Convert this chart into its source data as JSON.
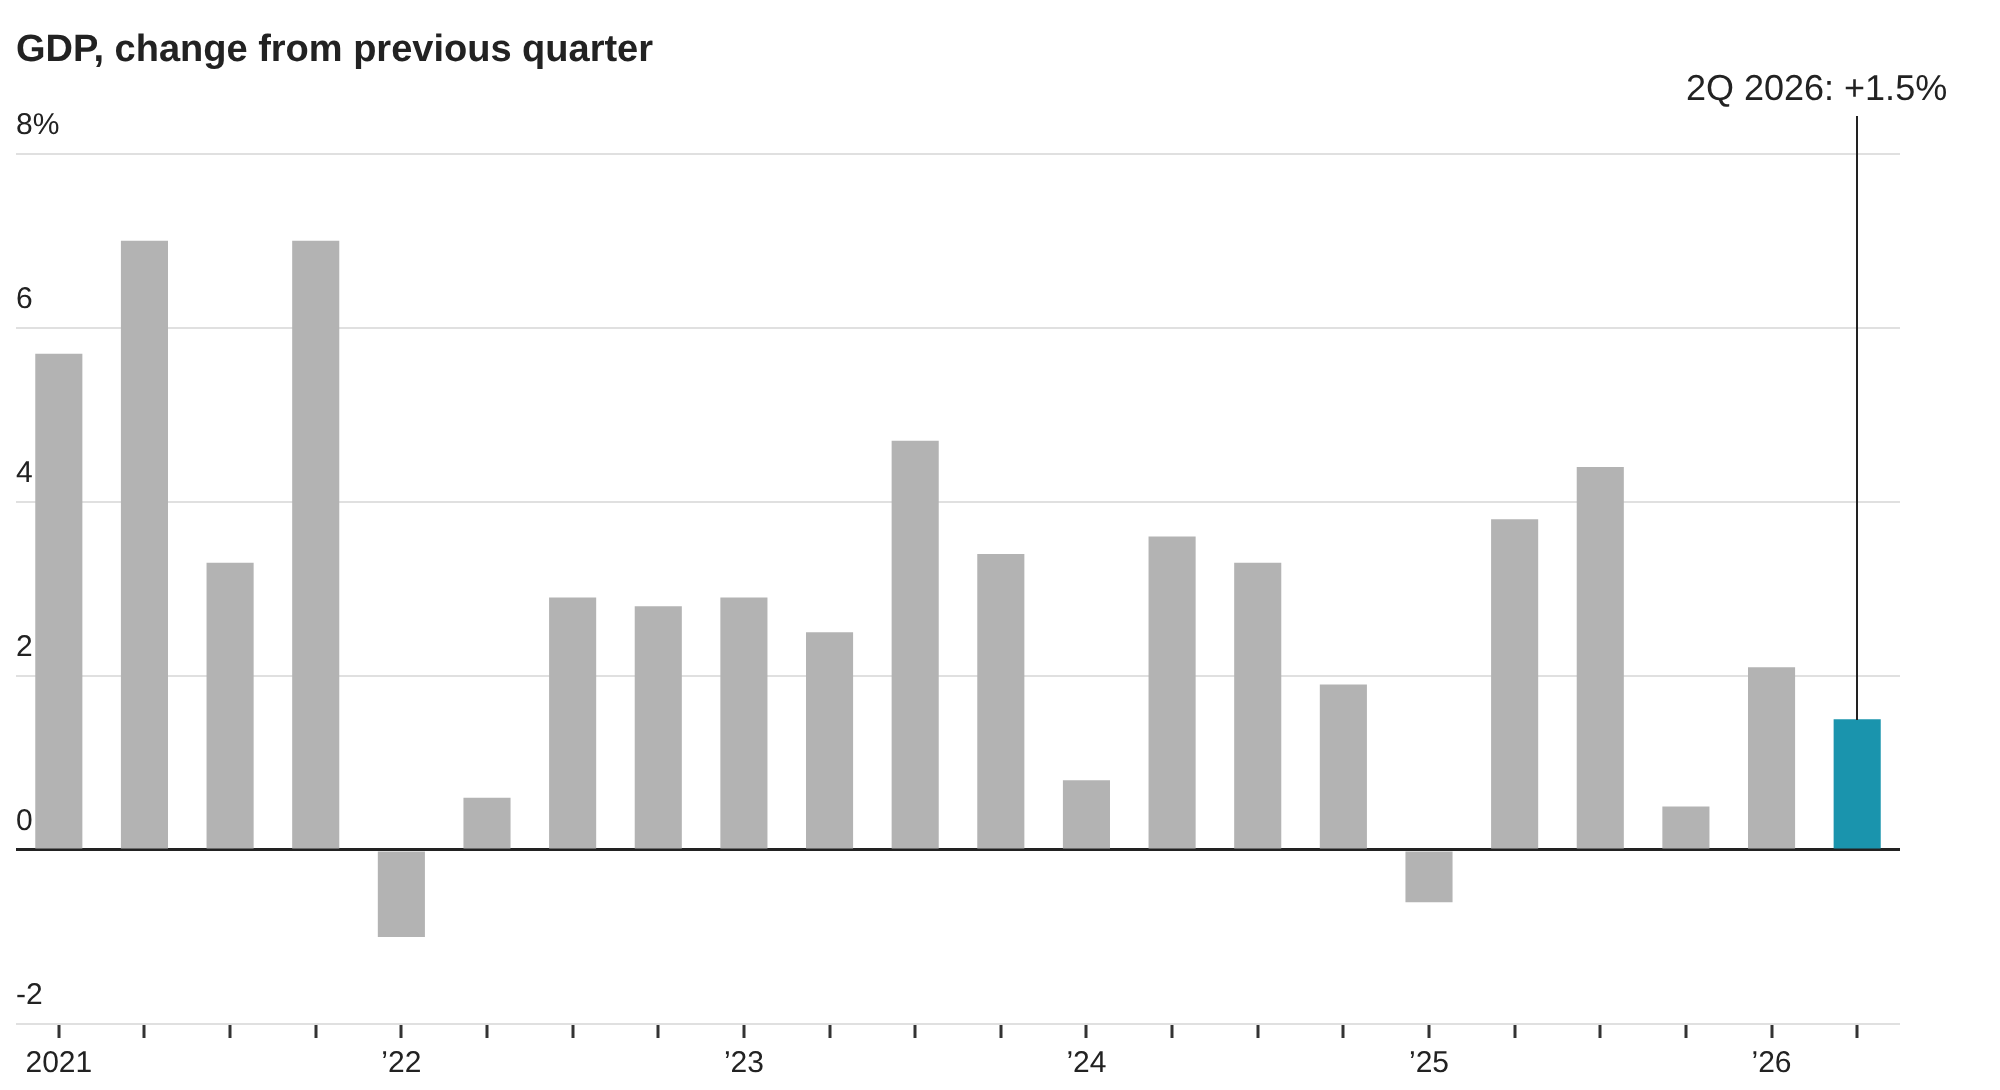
{
  "chart_data": {
    "type": "bar",
    "title": "GDP, change from previous quarter",
    "categories": [
      "2021",
      null,
      null,
      null,
      "’22",
      null,
      null,
      null,
      "’23",
      null,
      null,
      null,
      "’24",
      null,
      null,
      null,
      "’25",
      null,
      null,
      null,
      "’26",
      null
    ],
    "values": [
      5.7,
      7.0,
      3.3,
      7.0,
      -1.0,
      0.6,
      2.9,
      2.8,
      2.9,
      2.5,
      4.7,
      3.4,
      0.8,
      3.6,
      3.3,
      1.9,
      -0.6,
      3.8,
      4.4,
      0.5,
      2.1,
      1.5
    ],
    "colors": [
      "#b3b3b3",
      "#b3b3b3",
      "#b3b3b3",
      "#b3b3b3",
      "#b3b3b3",
      "#b3b3b3",
      "#b3b3b3",
      "#b3b3b3",
      "#b3b3b3",
      "#b3b3b3",
      "#b3b3b3",
      "#b3b3b3",
      "#b3b3b3",
      "#b3b3b3",
      "#b3b3b3",
      "#b3b3b3",
      "#b3b3b3",
      "#b3b3b3",
      "#b3b3b3",
      "#b3b3b3",
      "#b3b3b3",
      "#1a94ad"
    ],
    "ylim": [
      -2,
      8
    ],
    "yticks": [
      -2,
      0,
      2,
      4,
      6,
      {
        "value": 8,
        "label": "8%"
      }
    ],
    "grid": "y",
    "annotations": [
      "2Q 2026: +1.5%"
    ]
  }
}
